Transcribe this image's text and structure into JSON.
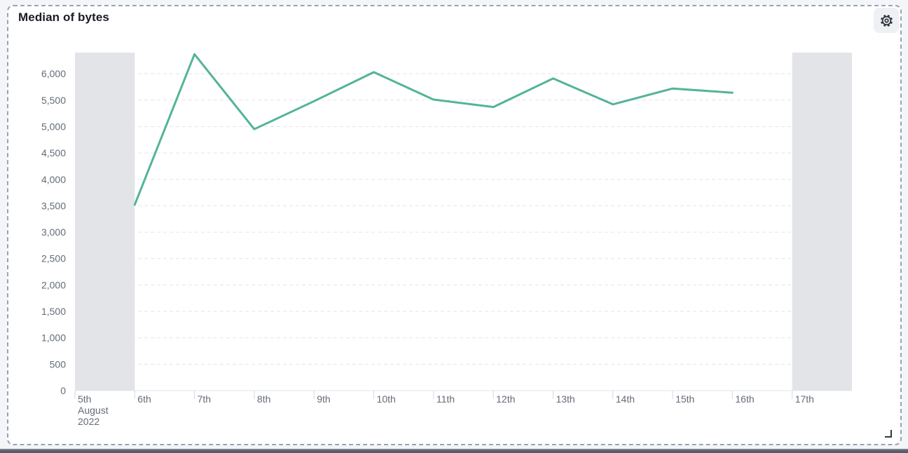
{
  "panel": {
    "title": "Median of bytes",
    "settings_button": {
      "icon": "gear-icon"
    },
    "resize_handle": {
      "icon": "resize-handle-icon"
    }
  },
  "chart_data": {
    "type": "line",
    "title": "Median of bytes",
    "xlabel": "",
    "ylabel": "",
    "x_unit": "days (August 2022)",
    "x_intervals": 13,
    "x_ticks": [
      {
        "pos": 0,
        "label": "5th",
        "sublabels": [
          "August",
          "2022"
        ]
      },
      {
        "pos": 1,
        "label": "6th"
      },
      {
        "pos": 2,
        "label": "7th"
      },
      {
        "pos": 3,
        "label": "8th"
      },
      {
        "pos": 4,
        "label": "9th"
      },
      {
        "pos": 5,
        "label": "10th"
      },
      {
        "pos": 6,
        "label": "11th"
      },
      {
        "pos": 7,
        "label": "12th"
      },
      {
        "pos": 8,
        "label": "13th"
      },
      {
        "pos": 9,
        "label": "14th"
      },
      {
        "pos": 10,
        "label": "15th"
      },
      {
        "pos": 11,
        "label": "16th"
      },
      {
        "pos": 12,
        "label": "17th"
      }
    ],
    "y_axis": {
      "tick_values": [
        0,
        500,
        1000,
        1500,
        2000,
        2500,
        3000,
        3500,
        4000,
        4500,
        5000,
        5500,
        6000
      ],
      "tick_labels": [
        "0",
        "500",
        "1,000",
        "1,500",
        "2,000",
        "2,500",
        "3,000",
        "3,500",
        "4,000",
        "4,500",
        "5,000",
        "5,500",
        "6,000"
      ]
    },
    "ylim": [
      0,
      6400
    ],
    "grid": true,
    "legend": "none",
    "series": [
      {
        "name": "Median of bytes",
        "color": "#54b399",
        "points": [
          {
            "pos": 1,
            "x": "6th",
            "y": 3520
          },
          {
            "pos": 2,
            "x": "7th",
            "y": 6370
          },
          {
            "pos": 3,
            "x": "8th",
            "y": 4950
          },
          {
            "pos": 4,
            "x": "9th",
            "y": 5480
          },
          {
            "pos": 5,
            "x": "10th",
            "y": 6030
          },
          {
            "pos": 6,
            "x": "11th",
            "y": 5510
          },
          {
            "pos": 7,
            "x": "12th",
            "y": 5370
          },
          {
            "pos": 8,
            "x": "13th",
            "y": 5910
          },
          {
            "pos": 9,
            "x": "14th",
            "y": 5420
          },
          {
            "pos": 10,
            "x": "15th",
            "y": 5720
          },
          {
            "pos": 11,
            "x": "16th",
            "y": 5640
          }
        ]
      }
    ],
    "partial_bucket_bands": [
      {
        "from_pos": 0,
        "to_pos": 1
      },
      {
        "from_pos": 12,
        "to_pos": 13
      }
    ],
    "colors": {
      "line": "#54b399",
      "band": "#e3e4e8",
      "gridline": "#e2e5eb",
      "axis_line": "#e2e5eb",
      "axis_label": "#646b79",
      "tick_mark": "#d3d7de",
      "title": "#1a1d26",
      "panel_border": "#9aa3b4",
      "icon": "#343741"
    }
  }
}
